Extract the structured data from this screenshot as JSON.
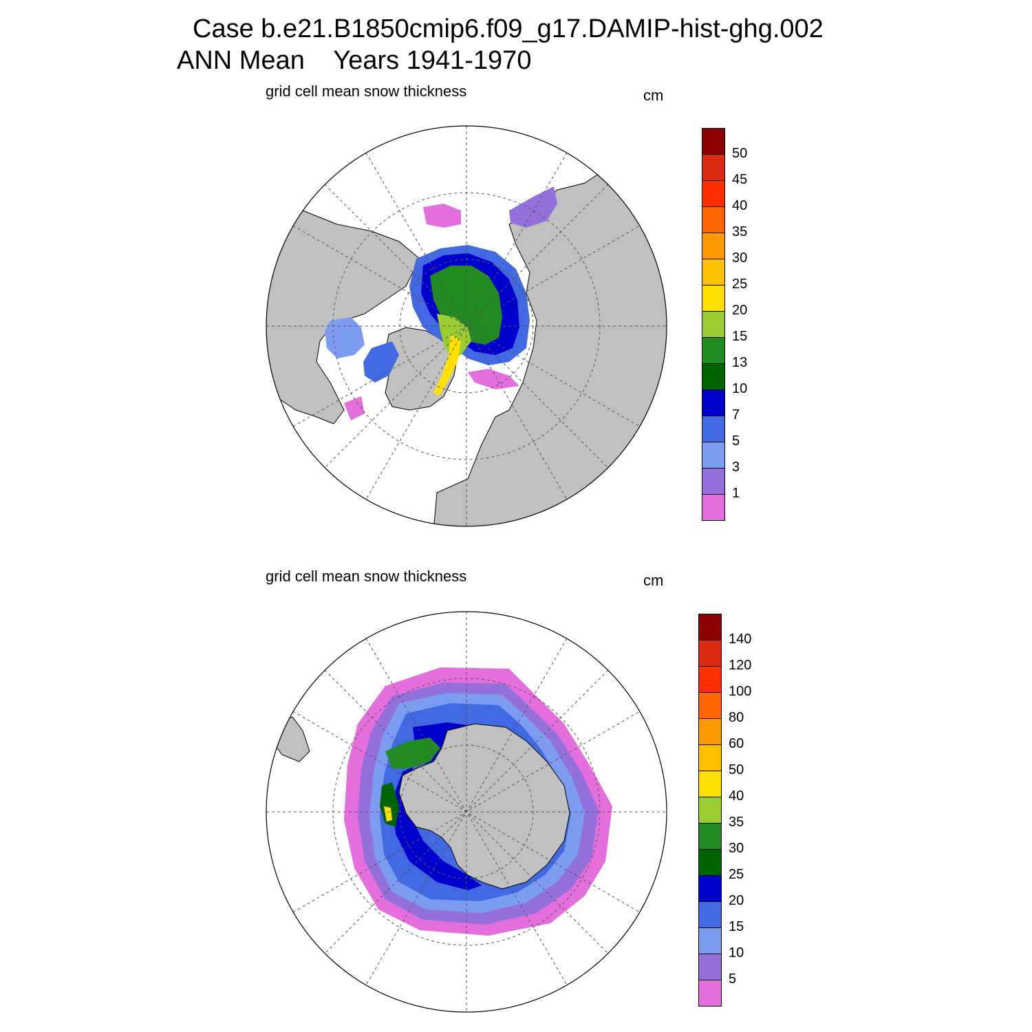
{
  "title": {
    "line1": "Case b.e21.B1850cmip6.f09_g17.DAMIP-hist-ghg.002",
    "line2": "ANN Mean    Years 1941-1970"
  },
  "panels": [
    {
      "id": "nh",
      "title": "grid cell mean snow thickness",
      "units": "cm",
      "hemisphere": "north",
      "colorbar": {
        "labels": [
          "1",
          "3",
          "5",
          "7",
          "10",
          "13",
          "15",
          "20",
          "25",
          "30",
          "35",
          "40",
          "45",
          "50"
        ],
        "colors": [
          "#e46fdc",
          "#9370db",
          "#7b9cf0",
          "#4169e1",
          "#0000cd",
          "#006400",
          "#228b22",
          "#9acd32",
          "#ffe000",
          "#ffc000",
          "#ff9a00",
          "#ff6600",
          "#ff3000",
          "#dd2a12",
          "#8b0000"
        ]
      }
    },
    {
      "id": "sh",
      "title": "grid cell mean snow thickness",
      "units": "cm",
      "hemisphere": "south",
      "colorbar": {
        "labels": [
          "5",
          "10",
          "15",
          "20",
          "25",
          "30",
          "35",
          "40",
          "50",
          "60",
          "80",
          "100",
          "120",
          "140"
        ],
        "colors": [
          "#e46fdc",
          "#9370db",
          "#7b9cf0",
          "#4169e1",
          "#0000cd",
          "#006400",
          "#228b22",
          "#9acd32",
          "#ffe000",
          "#ffc000",
          "#ff9a00",
          "#ff6600",
          "#ff3000",
          "#dd2a12",
          "#8b0000"
        ]
      }
    }
  ],
  "colors": {
    "land": "#c0c0c0",
    "ocean": "#ffffff",
    "coast": "#000000",
    "grid": "#555555"
  }
}
